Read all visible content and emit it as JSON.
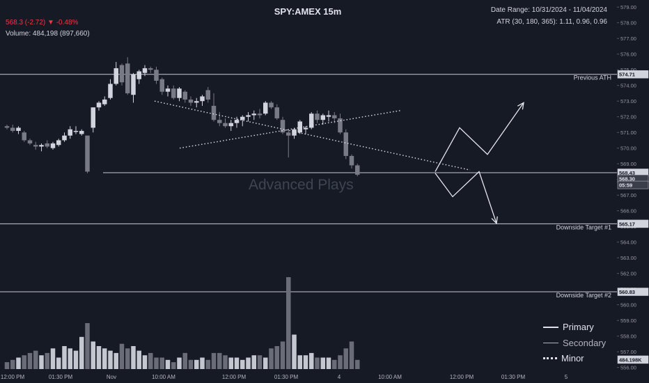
{
  "header": {
    "title": "SPY:AMEX 15m",
    "price_line": "568.3 (-2.72) ▼ -0.48%",
    "volume_line": "Volume: 484,198 (897,660)",
    "date_range": "Date Range: 10/31/2024 - 11/04/2024",
    "atr": "ATR (30, 180, 365): 1.11, 0.96, 0.96"
  },
  "watermark": "Advanced Plays",
  "legend": [
    {
      "label": "Primary",
      "style": "solid"
    },
    {
      "label": "Secondary",
      "style": "thin"
    },
    {
      "label": "Minor",
      "style": "dotted"
    }
  ],
  "colors": {
    "background": "#161a25",
    "up_candle": "#d1d4dc",
    "down_candle": "#787b86",
    "text": "#d1d4dc",
    "price_negative": "#f23645",
    "line": "#d1d4dc"
  },
  "chart_data": {
    "type": "candlestick",
    "title": "SPY:AMEX 15m",
    "y_range": [
      556,
      579
    ],
    "y_ticks": [
      556,
      557,
      558,
      559,
      560,
      561,
      562,
      563,
      564,
      565,
      566,
      567,
      568,
      569,
      570,
      571,
      572,
      573,
      574,
      575,
      576,
      577,
      578,
      579
    ],
    "x_ticks": [
      "12:00 PM",
      "01:30 PM",
      "Nov",
      "10:00 AM",
      "12:00 PM",
      "01:30 PM",
      "4",
      "10:00 AM",
      "12:00 PM",
      "01:30 PM",
      "5"
    ],
    "price_labels": [
      "574.71",
      "568.43",
      "568.30",
      "05:59",
      "565.17",
      "560.83",
      "484.198K"
    ],
    "levels": [
      {
        "price": 574.71,
        "label": "Previous ATH"
      },
      {
        "price": 568.43,
        "label": ""
      },
      {
        "price": 565.17,
        "label": "Downside Target #1"
      },
      {
        "price": 560.83,
        "label": "Downside Target #2"
      }
    ],
    "candles": [
      [
        571.4,
        571.5,
        571.2,
        571.3
      ],
      [
        571.3,
        571.5,
        571.0,
        571.1
      ],
      [
        571.1,
        571.4,
        570.9,
        571.3
      ],
      [
        571.0,
        571.1,
        570.4,
        570.5
      ],
      [
        570.5,
        570.6,
        570.2,
        570.3
      ],
      [
        570.2,
        570.4,
        569.9,
        570.1
      ],
      [
        570.1,
        570.3,
        569.8,
        570.2
      ],
      [
        570.3,
        570.5,
        570.0,
        570.1
      ],
      [
        570.0,
        570.4,
        569.9,
        570.3
      ],
      [
        570.2,
        570.6,
        570.1,
        570.5
      ],
      [
        570.5,
        571.0,
        570.4,
        570.8
      ],
      [
        570.8,
        571.4,
        570.6,
        571.2
      ],
      [
        571.1,
        571.4,
        570.9,
        571.1
      ],
      [
        570.9,
        571.2,
        570.8,
        571.1
      ],
      [
        570.8,
        570.8,
        568.4,
        568.5
      ],
      [
        571.3,
        572.6,
        571.0,
        572.6
      ],
      [
        572.6,
        573.0,
        572.4,
        572.9
      ],
      [
        572.8,
        573.3,
        572.7,
        573.1
      ],
      [
        573.2,
        574.4,
        573.1,
        574.1
      ],
      [
        574.1,
        575.5,
        574.0,
        575.1
      ],
      [
        575.3,
        575.4,
        574.0,
        574.2
      ],
      [
        575.4,
        575.8,
        573.4,
        573.5
      ],
      [
        573.4,
        574.8,
        572.9,
        574.7
      ],
      [
        574.4,
        575.0,
        574.1,
        574.9
      ],
      [
        574.8,
        575.3,
        574.6,
        575.1
      ],
      [
        575.1,
        575.2,
        574.8,
        575.0
      ],
      [
        575.0,
        575.2,
        574.1,
        574.3
      ],
      [
        574.4,
        574.5,
        573.4,
        573.6
      ],
      [
        573.6,
        574.0,
        573.3,
        573.8
      ],
      [
        573.8,
        574.0,
        573.1,
        573.2
      ],
      [
        573.2,
        573.9,
        573.0,
        573.8
      ],
      [
        573.6,
        573.7,
        572.9,
        573.1
      ],
      [
        573.1,
        573.3,
        572.7,
        572.9
      ],
      [
        572.9,
        573.2,
        572.6,
        573.0
      ],
      [
        573.0,
        573.4,
        572.7,
        573.3
      ],
      [
        573.7,
        573.9,
        572.9,
        573.1
      ],
      [
        572.7,
        573.5,
        571.7,
        571.8
      ],
      [
        571.8,
        572.3,
        571.4,
        571.6
      ],
      [
        571.6,
        571.9,
        571.3,
        571.4
      ],
      [
        571.4,
        571.8,
        571.1,
        571.6
      ],
      [
        571.6,
        572.0,
        571.3,
        571.8
      ],
      [
        571.8,
        572.1,
        571.4,
        572.0
      ],
      [
        572.0,
        572.3,
        571.7,
        572.1
      ],
      [
        572.1,
        572.4,
        571.8,
        572.2
      ],
      [
        572.2,
        572.5,
        571.9,
        572.1
      ],
      [
        572.2,
        573.0,
        572.1,
        572.9
      ],
      [
        572.9,
        573.0,
        572.5,
        572.6
      ],
      [
        572.6,
        572.8,
        571.8,
        571.9
      ],
      [
        571.8,
        572.0,
        570.9,
        571.0
      ],
      [
        571.0,
        571.2,
        569.4,
        570.8
      ],
      [
        570.8,
        571.3,
        570.6,
        571.2
      ],
      [
        571.0,
        571.8,
        570.9,
        571.7
      ],
      [
        571.2,
        571.4,
        570.9,
        571.3
      ],
      [
        571.3,
        572.3,
        571.2,
        572.2
      ],
      [
        572.2,
        572.4,
        571.6,
        571.8
      ],
      [
        571.8,
        572.2,
        571.5,
        572.1
      ],
      [
        572.0,
        572.4,
        571.7,
        572.1
      ],
      [
        572.1,
        572.3,
        571.6,
        571.9
      ],
      [
        571.9,
        572.2,
        570.9,
        571.0
      ],
      [
        571.0,
        571.2,
        569.3,
        569.5
      ],
      [
        569.5,
        569.6,
        568.7,
        568.9
      ],
      [
        568.9,
        569.0,
        568.2,
        568.3
      ]
    ],
    "volume": [
      3,
      4,
      5,
      6,
      7,
      8,
      6,
      7,
      9,
      5,
      10,
      9,
      8,
      14,
      20,
      12,
      10,
      9,
      8,
      7,
      11,
      9,
      10,
      8,
      6,
      7,
      5,
      5,
      4,
      3,
      5,
      7,
      4,
      4,
      5,
      4,
      7,
      7,
      6,
      5,
      5,
      4,
      5,
      6,
      6,
      5,
      9,
      10,
      12,
      40,
      15,
      6,
      6,
      7,
      5,
      5,
      5,
      4,
      6,
      9,
      12,
      4
    ],
    "volume_max": 40,
    "trendlines": [
      {
        "from": [
          258,
          570
        ],
        "to": [
          575,
          572.4
        ]
      },
      {
        "from": [
          222,
          573.0
        ],
        "to": [
          675,
          568.6
        ]
      }
    ],
    "projections": [
      {
        "style": "primary",
        "points": [
          [
            625,
            568.5
          ],
          [
            660,
            571.3
          ],
          [
            700,
            569.6
          ],
          [
            752,
            572.9
          ]
        ]
      },
      {
        "style": "secondary",
        "points": [
          [
            625,
            568.4
          ],
          [
            650,
            566.9
          ],
          [
            688,
            568.5
          ],
          [
            713,
            565.2
          ]
        ]
      }
    ]
  }
}
